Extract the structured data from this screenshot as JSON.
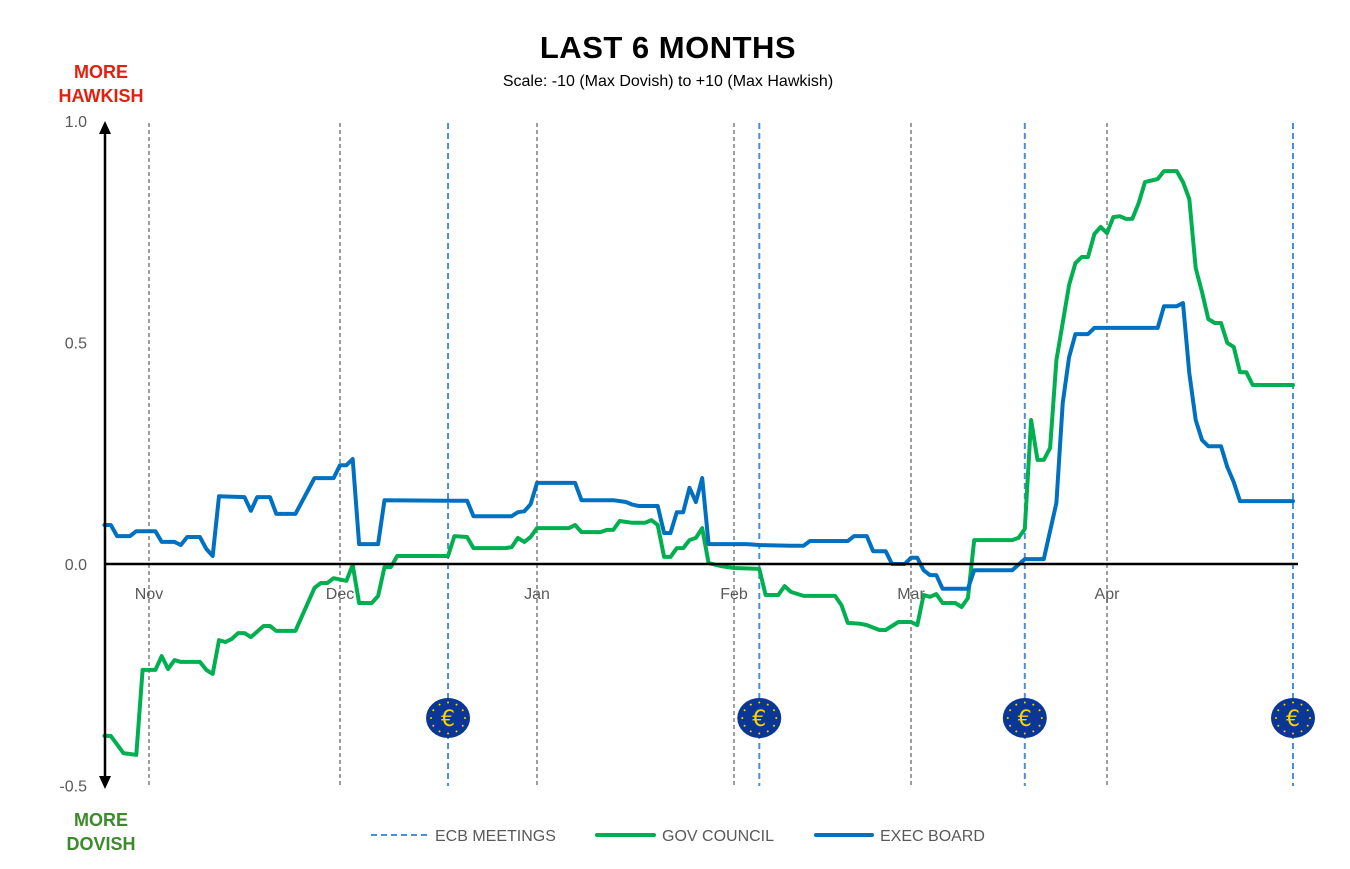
{
  "chart_data": {
    "type": "line",
    "title": "LAST 6 MONTHS",
    "subtitle": "Scale: -10 (Max Dovish)  to +10 (Max Hawkish)",
    "annotations": {
      "top": [
        "MORE",
        "HAWKISH"
      ],
      "bottom": [
        "MORE",
        "DOVISH"
      ],
      "top_color": "#e3200e",
      "bottom_color": "#3b8a2b"
    },
    "ylim": [
      -0.5,
      1.0
    ],
    "yticks": [
      "1.0",
      "0.5",
      "0.0",
      "-0.5"
    ],
    "ytick_values": [
      1.0,
      0.5,
      0.0,
      -0.5
    ],
    "xticks": [
      "Nov",
      "Dec",
      "Jan",
      "Feb",
      "Mar",
      "Apr"
    ],
    "xtick_dates": [
      "11-01",
      "12-01",
      "01-01",
      "02-01",
      "03-01",
      "04-01"
    ],
    "grid": "vertical dashed at month starts",
    "legend_position": "bottom",
    "legend": [
      "ECB MEETINGS",
      "GOV COUNCIL",
      "EXEC BOARD"
    ],
    "ecb_meetings": {
      "name": "ECB MEETINGS",
      "color": "#4a90d9",
      "dates": [
        "12-18",
        "02-05",
        "03-19",
        "04-30"
      ],
      "icon": "euro-coin-icon"
    },
    "series": [
      {
        "name": "GOV COUNCIL",
        "color": "#00b050",
        "points": [
          [
            "10-25",
            -0.388
          ],
          [
            "10-26",
            -0.388
          ],
          [
            "10-28",
            -0.427
          ],
          [
            "10-30",
            -0.431
          ],
          [
            "10-31",
            -0.239
          ],
          [
            "11-02",
            -0.239
          ],
          [
            "11-03",
            -0.208
          ],
          [
            "11-04",
            -0.237
          ],
          [
            "11-05",
            -0.217
          ],
          [
            "11-06",
            -0.221
          ],
          [
            "11-09",
            -0.221
          ],
          [
            "11-10",
            -0.239
          ],
          [
            "11-11",
            -0.248
          ],
          [
            "11-12",
            -0.172
          ],
          [
            "11-13",
            -0.176
          ],
          [
            "11-14",
            -0.169
          ],
          [
            "11-15",
            -0.156
          ],
          [
            "11-16",
            -0.156
          ],
          [
            "11-17",
            -0.165
          ],
          [
            "11-19",
            -0.14
          ],
          [
            "11-20",
            -0.14
          ],
          [
            "11-21",
            -0.151
          ],
          [
            "11-24",
            -0.151
          ],
          [
            "11-27",
            -0.054
          ],
          [
            "11-28",
            -0.043
          ],
          [
            "11-29",
            -0.043
          ],
          [
            "11-30",
            -0.032
          ],
          [
            "12-02",
            -0.038
          ],
          [
            "12-03",
            -0.002
          ],
          [
            "12-04",
            -0.088
          ],
          [
            "12-06",
            -0.088
          ],
          [
            "12-07",
            -0.072
          ],
          [
            "12-08",
            -0.007
          ],
          [
            "12-09",
            -0.007
          ],
          [
            "12-10",
            0.018
          ],
          [
            "12-18",
            0.018
          ],
          [
            "12-19",
            0.063
          ],
          [
            "12-21",
            0.061
          ],
          [
            "12-22",
            0.036
          ],
          [
            "12-27",
            0.036
          ],
          [
            "12-28",
            0.038
          ],
          [
            "12-29",
            0.059
          ],
          [
            "12-30",
            0.05
          ],
          [
            "12-31",
            0.061
          ],
          [
            "01-01",
            0.081
          ],
          [
            "01-06",
            0.081
          ],
          [
            "01-07",
            0.088
          ],
          [
            "01-08",
            0.072
          ],
          [
            "01-11",
            0.072
          ],
          [
            "01-12",
            0.077
          ],
          [
            "01-13",
            0.077
          ],
          [
            "01-14",
            0.097
          ],
          [
            "01-16",
            0.093
          ],
          [
            "01-18",
            0.093
          ],
          [
            "01-19",
            0.099
          ],
          [
            "01-20",
            0.088
          ],
          [
            "01-21",
            0.016
          ],
          [
            "01-22",
            0.016
          ],
          [
            "01-23",
            0.036
          ],
          [
            "01-24",
            0.036
          ],
          [
            "01-25",
            0.054
          ],
          [
            "01-26",
            0.059
          ],
          [
            "01-27",
            0.081
          ],
          [
            "01-28",
            0.002
          ],
          [
            "01-30",
            -0.005
          ],
          [
            "02-01",
            -0.009
          ],
          [
            "02-05",
            -0.011
          ],
          [
            "02-06",
            -0.07
          ],
          [
            "02-08",
            -0.07
          ],
          [
            "02-09",
            -0.05
          ],
          [
            "02-10",
            -0.063
          ],
          [
            "02-12",
            -0.072
          ],
          [
            "02-17",
            -0.072
          ],
          [
            "02-18",
            -0.093
          ],
          [
            "02-19",
            -0.133
          ],
          [
            "02-21",
            -0.135
          ],
          [
            "02-22",
            -0.138
          ],
          [
            "02-24",
            -0.149
          ],
          [
            "02-25",
            -0.149
          ],
          [
            "02-27",
            -0.131
          ],
          [
            "03-01",
            -0.131
          ],
          [
            "03-02",
            -0.138
          ],
          [
            "03-03",
            -0.07
          ],
          [
            "03-04",
            -0.074
          ],
          [
            "03-05",
            -0.068
          ],
          [
            "03-06",
            -0.088
          ],
          [
            "03-08",
            -0.088
          ],
          [
            "03-09",
            -0.097
          ],
          [
            "03-10",
            -0.077
          ],
          [
            "03-11",
            0.054
          ],
          [
            "03-17",
            0.054
          ],
          [
            "03-18",
            0.059
          ],
          [
            "03-19",
            0.079
          ],
          [
            "03-20",
            0.325
          ],
          [
            "03-21",
            0.235
          ],
          [
            "03-22",
            0.235
          ],
          [
            "03-23",
            0.262
          ],
          [
            "03-24",
            0.46
          ],
          [
            "03-25",
            0.544
          ],
          [
            "03-26",
            0.63
          ],
          [
            "03-27",
            0.679
          ],
          [
            "03-28",
            0.693
          ],
          [
            "03-29",
            0.693
          ],
          [
            "03-30",
            0.745
          ],
          [
            "03-31",
            0.761
          ],
          [
            "04-01",
            0.747
          ],
          [
            "04-02",
            0.783
          ],
          [
            "04-03",
            0.785
          ],
          [
            "04-04",
            0.779
          ],
          [
            "04-05",
            0.779
          ],
          [
            "04-06",
            0.815
          ],
          [
            "04-07",
            0.862
          ],
          [
            "04-09",
            0.869
          ],
          [
            "04-10",
            0.887
          ],
          [
            "04-12",
            0.887
          ],
          [
            "04-13",
            0.862
          ],
          [
            "04-14",
            0.824
          ],
          [
            "04-15",
            0.668
          ],
          [
            "04-16",
            0.614
          ],
          [
            "04-17",
            0.553
          ],
          [
            "04-18",
            0.544
          ],
          [
            "04-19",
            0.544
          ],
          [
            "04-20",
            0.499
          ],
          [
            "04-21",
            0.49
          ],
          [
            "04-22",
            0.433
          ],
          [
            "04-23",
            0.433
          ],
          [
            "04-24",
            0.404
          ],
          [
            "04-30",
            0.404
          ]
        ]
      },
      {
        "name": "EXEC BOARD",
        "color": "#0070c0",
        "points": [
          [
            "10-25",
            0.088
          ],
          [
            "10-26",
            0.088
          ],
          [
            "10-27",
            0.063
          ],
          [
            "10-29",
            0.063
          ],
          [
            "10-30",
            0.074
          ],
          [
            "11-02",
            0.074
          ],
          [
            "11-03",
            0.05
          ],
          [
            "11-05",
            0.05
          ],
          [
            "11-06",
            0.043
          ],
          [
            "11-07",
            0.061
          ],
          [
            "11-09",
            0.061
          ],
          [
            "11-10",
            0.034
          ],
          [
            "11-11",
            0.018
          ],
          [
            "11-12",
            0.153
          ],
          [
            "11-16",
            0.151
          ],
          [
            "11-17",
            0.12
          ],
          [
            "11-18",
            0.151
          ],
          [
            "11-20",
            0.151
          ],
          [
            "11-21",
            0.113
          ],
          [
            "11-24",
            0.113
          ],
          [
            "11-26",
            0.167
          ],
          [
            "11-27",
            0.194
          ],
          [
            "11-30",
            0.194
          ],
          [
            "12-01",
            0.223
          ],
          [
            "12-02",
            0.223
          ],
          [
            "12-03",
            0.237
          ],
          [
            "12-04",
            0.045
          ],
          [
            "12-07",
            0.045
          ],
          [
            "12-08",
            0.144
          ],
          [
            "12-18",
            0.143
          ],
          [
            "12-21",
            0.143
          ],
          [
            "12-22",
            0.108
          ],
          [
            "12-28",
            0.108
          ],
          [
            "12-29",
            0.117
          ],
          [
            "12-30",
            0.119
          ],
          [
            "12-31",
            0.135
          ],
          [
            "01-01",
            0.183
          ],
          [
            "01-07",
            0.183
          ],
          [
            "01-08",
            0.144
          ],
          [
            "01-13",
            0.144
          ],
          [
            "01-15",
            0.14
          ],
          [
            "01-16",
            0.134
          ],
          [
            "01-17",
            0.131
          ],
          [
            "01-20",
            0.131
          ],
          [
            "01-21",
            0.07
          ],
          [
            "01-22",
            0.07
          ],
          [
            "01-23",
            0.117
          ],
          [
            "01-24",
            0.117
          ],
          [
            "01-25",
            0.172
          ],
          [
            "01-26",
            0.14
          ],
          [
            "01-27",
            0.194
          ],
          [
            "01-28",
            0.045
          ],
          [
            "02-03",
            0.045
          ],
          [
            "02-05",
            0.043
          ],
          [
            "02-10",
            0.041
          ],
          [
            "02-12",
            0.041
          ],
          [
            "02-13",
            0.052
          ],
          [
            "02-19",
            0.052
          ],
          [
            "02-20",
            0.063
          ],
          [
            "02-22",
            0.063
          ],
          [
            "02-23",
            0.029
          ],
          [
            "02-25",
            0.029
          ],
          [
            "02-26",
            0.0
          ],
          [
            "02-28",
            0.0
          ],
          [
            "03-01",
            0.014
          ],
          [
            "03-02",
            0.014
          ],
          [
            "03-03",
            -0.014
          ],
          [
            "03-04",
            -0.025
          ],
          [
            "03-05",
            -0.025
          ],
          [
            "03-06",
            -0.056
          ],
          [
            "03-10",
            -0.056
          ],
          [
            "03-11",
            -0.014
          ],
          [
            "03-17",
            -0.014
          ],
          [
            "03-19",
            0.011
          ],
          [
            "03-22",
            0.011
          ],
          [
            "03-24",
            0.138
          ],
          [
            "03-25",
            0.363
          ],
          [
            "03-26",
            0.467
          ],
          [
            "03-27",
            0.519
          ],
          [
            "03-29",
            0.519
          ],
          [
            "03-30",
            0.533
          ],
          [
            "04-09",
            0.533
          ],
          [
            "04-10",
            0.582
          ],
          [
            "04-12",
            0.582
          ],
          [
            "04-13",
            0.589
          ],
          [
            "04-14",
            0.431
          ],
          [
            "04-15",
            0.325
          ],
          [
            "04-16",
            0.28
          ],
          [
            "04-17",
            0.266
          ],
          [
            "04-19",
            0.266
          ],
          [
            "04-20",
            0.219
          ],
          [
            "04-21",
            0.185
          ],
          [
            "04-22",
            0.142
          ],
          [
            "04-30",
            0.142
          ]
        ]
      }
    ]
  }
}
